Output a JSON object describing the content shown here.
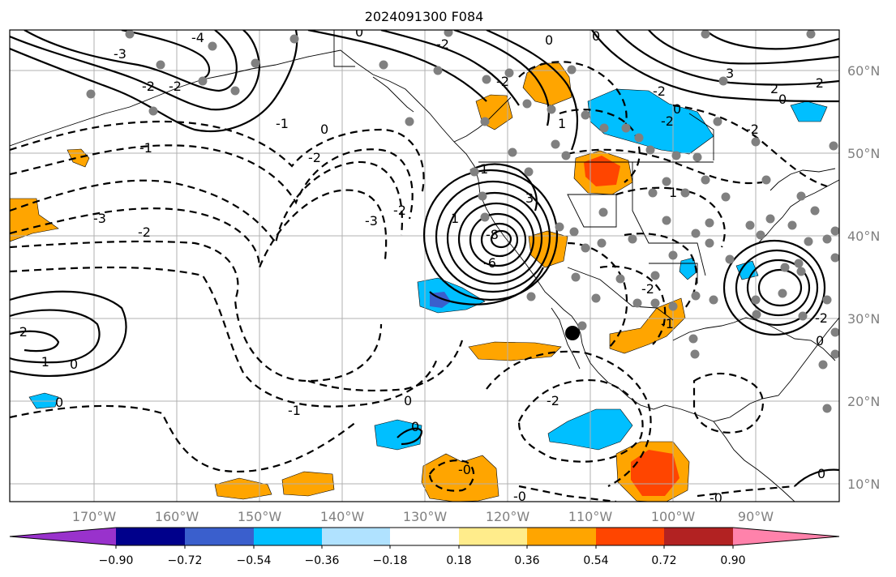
{
  "title": "2024091300 F084",
  "map": {
    "lon_labels": [
      "170°W",
      "160°W",
      "150°W",
      "140°W",
      "130°W",
      "120°W",
      "110°W",
      "100°W",
      "90°W"
    ],
    "lat_labels": [
      "60°N",
      "50°N",
      "40°N",
      "30°N",
      "20°N",
      "10°N"
    ],
    "contour_labels": [
      "-4",
      "-3",
      "-2",
      "-1",
      "0",
      "1",
      "2",
      "3",
      "-8",
      "-6",
      "-0"
    ]
  },
  "colorbar": {
    "tick_labels": [
      "−0.90",
      "−0.72",
      "−0.54",
      "−0.36",
      "−0.18",
      "0.18",
      "0.36",
      "0.54",
      "0.72",
      "0.90"
    ],
    "colors": [
      "#9932cc",
      "#00008b",
      "#3a5fcd",
      "#00bfff",
      "#b0e2ff",
      "#ffffff",
      "#ffec8b",
      "#ffa500",
      "#ff4500",
      "#b22222",
      "#ff82ab"
    ]
  },
  "colors": {
    "grid": "#b0b0b0",
    "land_dot": "#808080"
  }
}
